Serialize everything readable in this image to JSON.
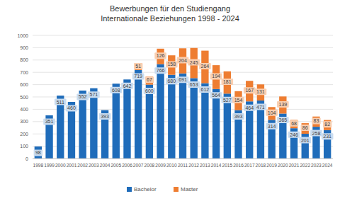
{
  "chart_data": {
    "type": "bar",
    "title": "Bewerbungen für den Studiengang",
    "subtitle": "Internationale Beziehungen 1998 - 2024",
    "categories": [
      "1998",
      "1999",
      "2000",
      "2001",
      "2002",
      "2003",
      "2004",
      "2005",
      "2006",
      "2007",
      "2008",
      "2009",
      "2010",
      "2011",
      "2012",
      "2013",
      "2014",
      "2015",
      "2016",
      "2017",
      "2018",
      "2019",
      "2020",
      "2021",
      "2022",
      "2023",
      "2024"
    ],
    "series": [
      {
        "name": "Bachelor",
        "color": "#1f6cba",
        "values": [
          98,
          351,
          511,
          460,
          552,
          571,
          393,
          608,
          642,
          719,
          600,
          766,
          680,
          691,
          653,
          612,
          564,
          527,
          393,
          464,
          471,
          314,
          365,
          246,
          201,
          258,
          231
        ]
      },
      {
        "name": "Master",
        "color": "#ee7d31",
        "values": [
          null,
          null,
          null,
          null,
          null,
          null,
          null,
          null,
          null,
          51,
          67,
          126,
          158,
          204,
          245,
          264,
          194,
          181,
          154,
          167,
          131,
          104,
          139,
          68,
          86,
          83,
          82
        ]
      }
    ],
    "ylim": [
      0,
      1000
    ],
    "yticks": [
      0,
      100,
      200,
      300,
      400,
      500,
      600,
      700,
      800,
      900,
      1000
    ],
    "grid": true,
    "stacked": true,
    "data_labels": true,
    "legend": "bottom"
  }
}
